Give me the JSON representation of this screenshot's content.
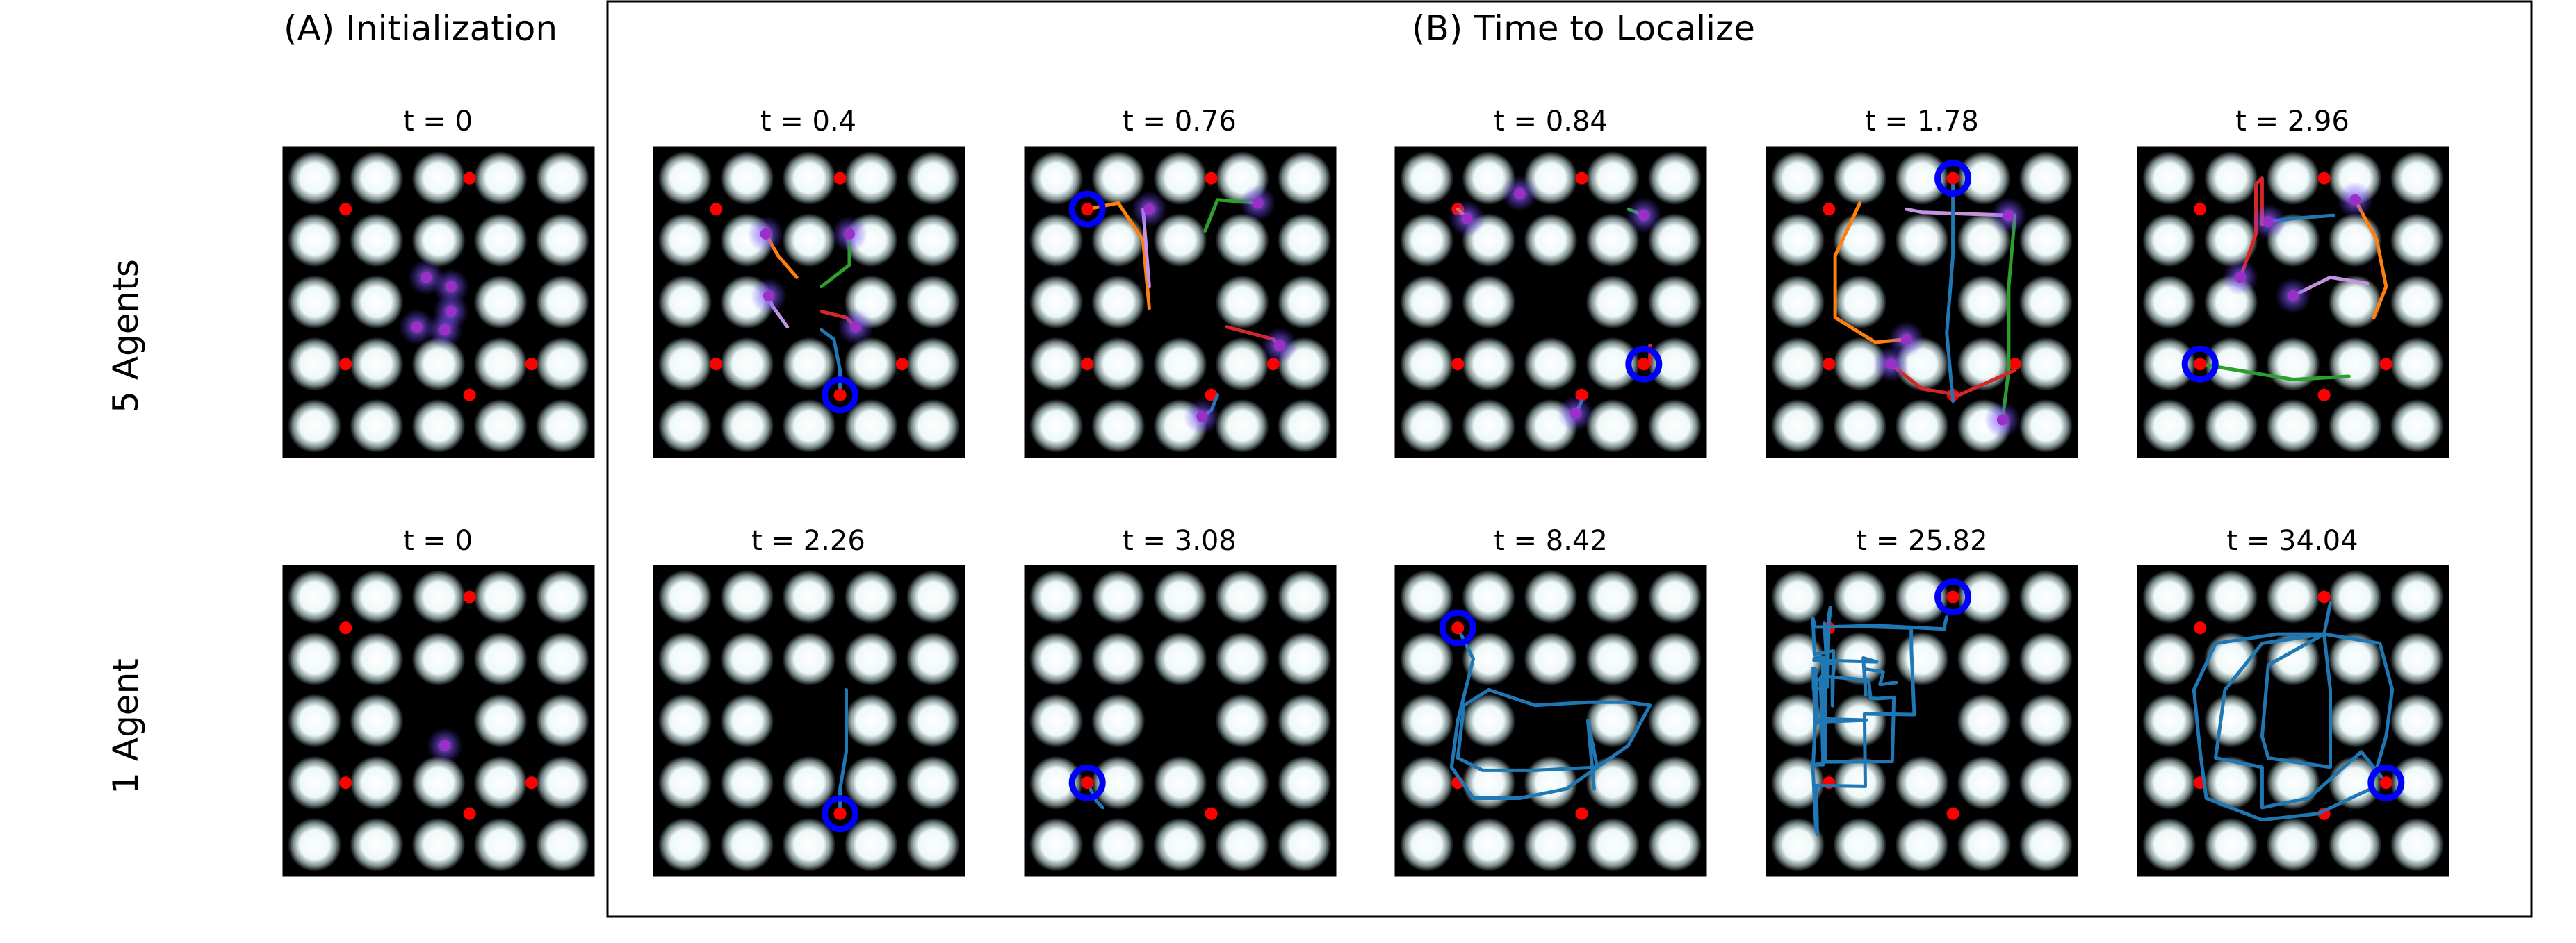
{
  "headings": {
    "init": "(A) Initialization",
    "localize": "(B) Time to Localize"
  },
  "rows": [
    {
      "label": "5 Agents",
      "panels": [
        {
          "t": "t = 0"
        },
        {
          "t": "t = 0.4"
        },
        {
          "t": "t = 0.76"
        },
        {
          "t": "t = 0.84"
        },
        {
          "t": "t = 1.78"
        },
        {
          "t": "t = 2.96"
        }
      ]
    },
    {
      "label": "1 Agent",
      "panels": [
        {
          "t": "t = 0"
        },
        {
          "t": "t = 2.26"
        },
        {
          "t": "t = 3.08"
        },
        {
          "t": "t = 8.42"
        },
        {
          "t": "t = 25.82"
        },
        {
          "t": "t = 34.04"
        }
      ]
    }
  ],
  "colors": {
    "background": "#000000",
    "tile": "#ffffff",
    "source": "#ff0000",
    "agent": "#9b30c9",
    "localized_ring": "#0000ff",
    "frame": "#000000",
    "trails": [
      "#1f77b4",
      "#ff7f0e",
      "#2ca02c",
      "#d62728",
      "#c493e0"
    ]
  },
  "sources": [
    [
      0.6,
      0.9
    ],
    [
      0.2,
      0.8
    ],
    [
      0.2,
      0.3
    ],
    [
      0.6,
      0.2
    ],
    [
      0.8,
      0.3
    ]
  ]
}
